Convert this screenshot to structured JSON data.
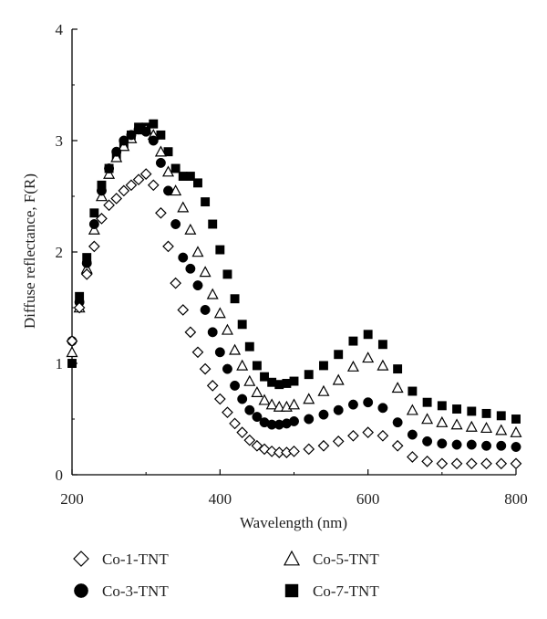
{
  "chart_data": {
    "type": "scatter",
    "xlabel": "Wavelength (nm)",
    "ylabel": "Diffuse reflectance, F(R)",
    "xlim": [
      200,
      800
    ],
    "ylim": [
      0,
      4
    ],
    "x_ticks": [
      200,
      400,
      600,
      800
    ],
    "y_ticks": [
      0,
      1,
      2,
      3,
      4
    ],
    "grid": false,
    "legend_position": "bottom",
    "series": [
      {
        "name": "Co-1-TNT",
        "marker": "open-diamond",
        "color": "#000000",
        "x": [
          200,
          210,
          220,
          230,
          240,
          250,
          260,
          270,
          280,
          290,
          300,
          310,
          320,
          330,
          340,
          350,
          360,
          370,
          380,
          390,
          400,
          410,
          420,
          430,
          440,
          450,
          460,
          470,
          480,
          490,
          500,
          520,
          540,
          560,
          580,
          600,
          620,
          640,
          660,
          680,
          700,
          720,
          740,
          760,
          780,
          800
        ],
        "y": [
          1.2,
          1.5,
          1.8,
          2.05,
          2.3,
          2.42,
          2.48,
          2.55,
          2.6,
          2.65,
          2.7,
          2.6,
          2.35,
          2.05,
          1.72,
          1.48,
          1.28,
          1.1,
          0.95,
          0.8,
          0.68,
          0.56,
          0.46,
          0.38,
          0.31,
          0.26,
          0.23,
          0.21,
          0.2,
          0.2,
          0.21,
          0.23,
          0.26,
          0.3,
          0.35,
          0.38,
          0.35,
          0.26,
          0.16,
          0.12,
          0.1,
          0.1,
          0.1,
          0.1,
          0.1,
          0.1
        ]
      },
      {
        "name": "Co-5-TNT",
        "marker": "open-triangle",
        "color": "#000000",
        "x": [
          200,
          210,
          220,
          230,
          240,
          250,
          260,
          270,
          280,
          290,
          300,
          310,
          320,
          330,
          340,
          350,
          360,
          370,
          380,
          390,
          400,
          410,
          420,
          430,
          440,
          450,
          460,
          470,
          480,
          490,
          500,
          520,
          540,
          560,
          580,
          600,
          620,
          640,
          660,
          680,
          700,
          720,
          740,
          760,
          780,
          800
        ],
        "y": [
          1.1,
          1.5,
          1.85,
          2.2,
          2.5,
          2.7,
          2.85,
          2.95,
          3.02,
          3.1,
          3.1,
          3.05,
          2.9,
          2.72,
          2.55,
          2.4,
          2.2,
          2.0,
          1.82,
          1.62,
          1.45,
          1.3,
          1.12,
          0.98,
          0.84,
          0.74,
          0.67,
          0.63,
          0.61,
          0.61,
          0.63,
          0.68,
          0.75,
          0.85,
          0.97,
          1.05,
          0.98,
          0.78,
          0.58,
          0.5,
          0.47,
          0.45,
          0.43,
          0.42,
          0.4,
          0.38
        ]
      },
      {
        "name": "Co-3-TNT",
        "marker": "filled-circle",
        "color": "#000000",
        "x": [
          200,
          210,
          220,
          230,
          240,
          250,
          260,
          270,
          280,
          290,
          300,
          310,
          320,
          330,
          340,
          350,
          360,
          370,
          380,
          390,
          400,
          410,
          420,
          430,
          440,
          450,
          460,
          470,
          480,
          490,
          500,
          520,
          540,
          560,
          580,
          600,
          620,
          640,
          660,
          680,
          700,
          720,
          740,
          760,
          780,
          800
        ],
        "y": [
          1.2,
          1.55,
          1.9,
          2.25,
          2.55,
          2.75,
          2.9,
          3.0,
          3.05,
          3.1,
          3.08,
          3.0,
          2.8,
          2.55,
          2.25,
          1.95,
          1.85,
          1.7,
          1.48,
          1.28,
          1.1,
          0.95,
          0.8,
          0.68,
          0.58,
          0.52,
          0.47,
          0.45,
          0.45,
          0.46,
          0.48,
          0.5,
          0.54,
          0.58,
          0.63,
          0.65,
          0.6,
          0.47,
          0.36,
          0.3,
          0.28,
          0.27,
          0.27,
          0.26,
          0.26,
          0.25
        ]
      },
      {
        "name": "Co-7-TNT",
        "marker": "filled-square",
        "color": "#000000",
        "x": [
          200,
          210,
          220,
          230,
          240,
          250,
          260,
          270,
          280,
          290,
          300,
          310,
          320,
          330,
          340,
          350,
          360,
          370,
          380,
          390,
          400,
          410,
          420,
          430,
          440,
          450,
          460,
          470,
          480,
          490,
          500,
          520,
          540,
          560,
          580,
          600,
          620,
          640,
          660,
          680,
          700,
          720,
          740,
          760,
          780,
          800
        ],
        "y": [
          1.0,
          1.6,
          1.95,
          2.35,
          2.6,
          2.75,
          2.85,
          2.95,
          3.05,
          3.12,
          3.12,
          3.15,
          3.05,
          2.9,
          2.75,
          2.68,
          2.68,
          2.62,
          2.45,
          2.25,
          2.02,
          1.8,
          1.58,
          1.35,
          1.15,
          0.98,
          0.88,
          0.83,
          0.81,
          0.82,
          0.84,
          0.9,
          0.98,
          1.08,
          1.2,
          1.26,
          1.17,
          0.95,
          0.75,
          0.65,
          0.62,
          0.59,
          0.57,
          0.55,
          0.53,
          0.5
        ]
      }
    ]
  }
}
